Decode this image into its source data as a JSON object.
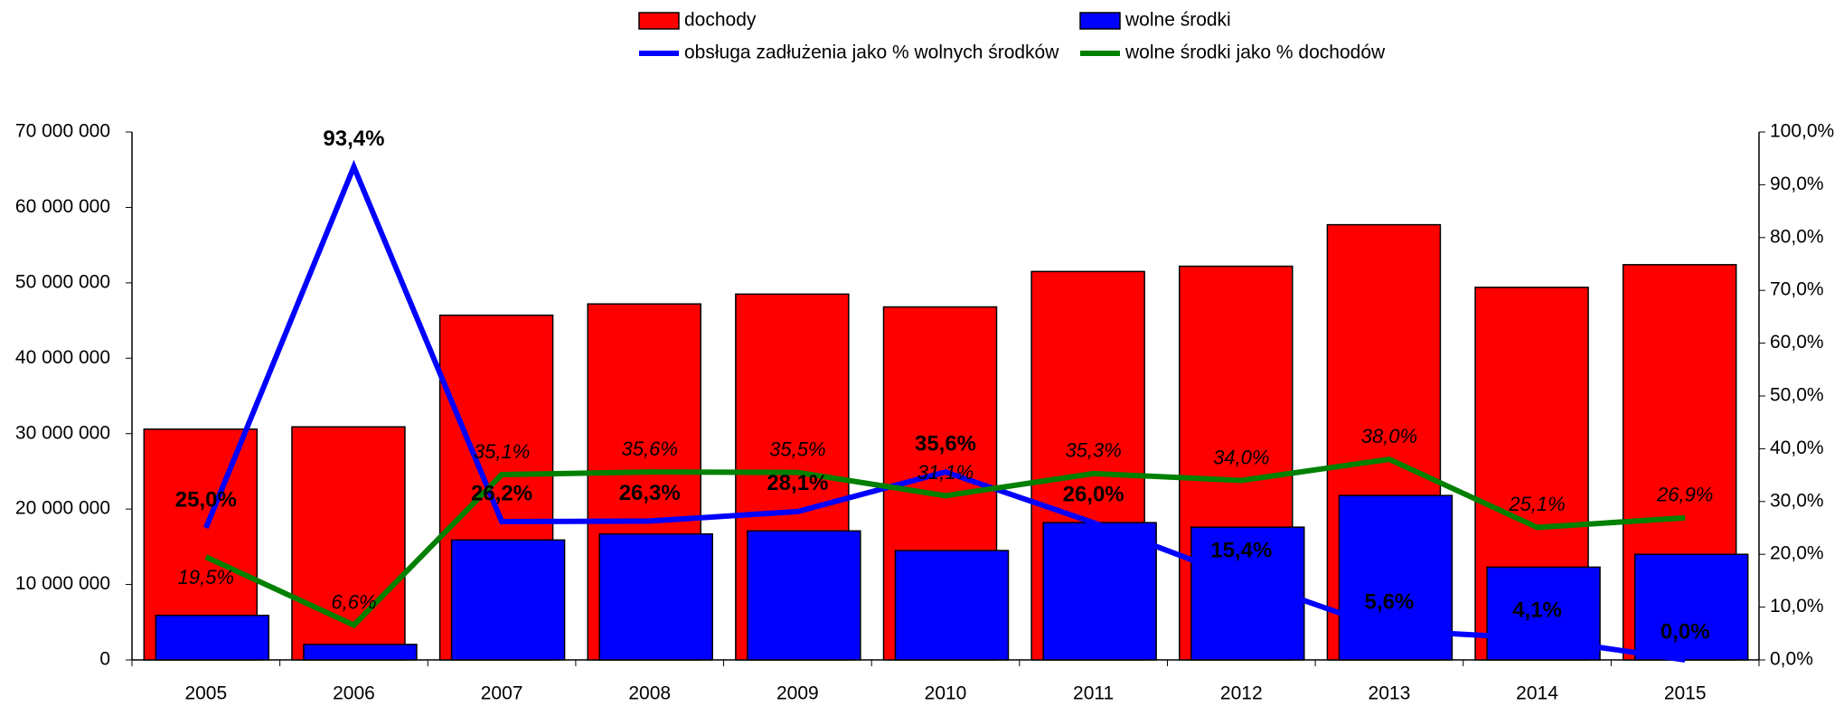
{
  "chart_data": {
    "type": "bar-line",
    "categories": [
      "2005",
      "2006",
      "2007",
      "2008",
      "2009",
      "2010",
      "2011",
      "2012",
      "2013",
      "2014",
      "2015"
    ],
    "series": [
      {
        "name": "dochody",
        "color": "#ff0000",
        "kind": "bar",
        "values": [
          30600000,
          30900000,
          45700000,
          47200000,
          48500000,
          46800000,
          51500000,
          52200000,
          57700000,
          49400000,
          52400000
        ]
      },
      {
        "name": "wolne środki",
        "color": "#0000ff",
        "kind": "bar",
        "values": [
          5900000,
          2050000,
          15900000,
          16700000,
          17100000,
          14500000,
          18200000,
          17600000,
          21800000,
          12300000,
          14000000
        ]
      },
      {
        "name": "obsługa zadłużenia jako % wolnych środków",
        "color": "#0000ff",
        "kind": "line",
        "axis": "y2",
        "values": [
          25.0,
          93.4,
          26.2,
          26.3,
          28.1,
          35.6,
          26.0,
          15.4,
          5.6,
          4.1,
          0.0
        ],
        "value_labels": [
          "25,0%",
          "93,4%",
          "26,2%",
          "26,3%",
          "28,1%",
          "35,6%",
          "26,0%",
          "15,4%",
          "5,6%",
          "4,1%",
          "0,0%"
        ]
      },
      {
        "name": "wolne środki jako % dochodów",
        "color": "#008000",
        "kind": "line",
        "axis": "y2",
        "values": [
          19.5,
          6.6,
          35.1,
          35.6,
          35.5,
          31.1,
          35.3,
          34.0,
          38.0,
          25.1,
          26.9
        ],
        "value_labels": [
          "19,5%",
          "6,6%",
          "35,1%",
          "35,6%",
          "35,5%",
          "31,1%",
          "35,3%",
          "34,0%",
          "38,0%",
          "25,1%",
          "26,9%"
        ]
      }
    ],
    "ylim": [
      0,
      70000000
    ],
    "yticks": [
      0,
      {
        "value": 10000000,
        "label": "10 000 000"
      },
      {
        "value": 20000000,
        "label": "20 000 000"
      },
      {
        "value": 30000000,
        "label": "30 000 000"
      },
      {
        "value": 40000000,
        "label": "40 000 000"
      },
      {
        "value": 50000000,
        "label": "50 000 000"
      },
      {
        "value": 60000000,
        "label": "60 000 000"
      },
      {
        "value": 70000000,
        "label": "70 000 000"
      }
    ],
    "y2lim": [
      0,
      100
    ],
    "y2ticks": [
      {
        "value": 0,
        "label": "0,0%"
      },
      {
        "value": 10,
        "label": "10,0%"
      },
      {
        "value": 20,
        "label": "20,0%"
      },
      {
        "value": 30,
        "label": "30,0%"
      },
      {
        "value": 40,
        "label": "40,0%"
      },
      {
        "value": 50,
        "label": "50,0%"
      },
      {
        "value": 60,
        "label": "60,0%"
      },
      {
        "value": 70,
        "label": "70,0%"
      },
      {
        "value": 80,
        "label": "80,0%"
      },
      {
        "value": 90,
        "label": "90,0%"
      },
      {
        "value": 100,
        "label": "100,0%"
      }
    ],
    "legend": "top"
  }
}
